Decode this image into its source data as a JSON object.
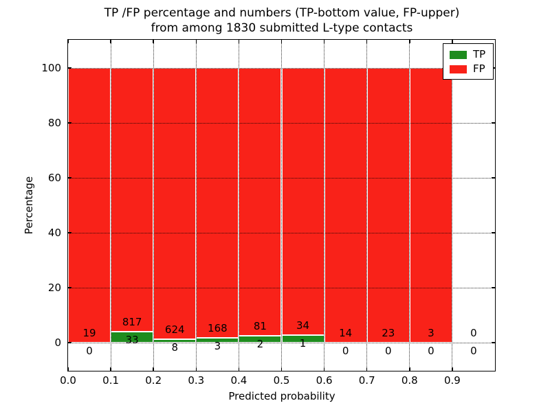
{
  "title": {
    "line1": "TP /FP percentage and numbers (TP-bottom value, FP-upper)",
    "line2": "from among 1830 submitted L-type contacts"
  },
  "axes": {
    "xlabel": "Predicted probability",
    "ylabel": "Percentage"
  },
  "legend": {
    "items": [
      {
        "label": "TP",
        "color": "#1e8c1e"
      },
      {
        "label": "FP",
        "color": "#f92219"
      }
    ]
  },
  "chart_data": {
    "type": "bar",
    "stacked": true,
    "title": "TP /FP percentage and numbers (TP-bottom value, FP-upper) from among 1830 submitted L-type contacts",
    "xlabel": "Predicted probability",
    "ylabel": "Percentage",
    "xlim": [
      0.0,
      1.0
    ],
    "ylim": [
      -10,
      110
    ],
    "grid": "dotted",
    "legend_position": "upper right",
    "x_ticks": [
      {
        "value": 0.0,
        "label": "0.0"
      },
      {
        "value": 0.1,
        "label": "0.1"
      },
      {
        "value": 0.2,
        "label": "0.2"
      },
      {
        "value": 0.3,
        "label": "0.3"
      },
      {
        "value": 0.4,
        "label": "0.4"
      },
      {
        "value": 0.5,
        "label": "0.5"
      },
      {
        "value": 0.6,
        "label": "0.6"
      },
      {
        "value": 0.7,
        "label": "0.7"
      },
      {
        "value": 0.8,
        "label": "0.8"
      },
      {
        "value": 0.9,
        "label": "0.9"
      }
    ],
    "y_ticks": [
      {
        "value": 0,
        "label": "0"
      },
      {
        "value": 20,
        "label": "20"
      },
      {
        "value": 40,
        "label": "40"
      },
      {
        "value": 60,
        "label": "60"
      },
      {
        "value": 80,
        "label": "80"
      },
      {
        "value": 100,
        "label": "100"
      }
    ],
    "series": [
      {
        "name": "TP",
        "color": "#1e8c1e",
        "position": "bottom"
      },
      {
        "name": "FP",
        "color": "#f92219",
        "position": "upper"
      }
    ],
    "bins": [
      {
        "x0": 0.0,
        "x1": 0.1,
        "tp": 0,
        "fp": 19
      },
      {
        "x0": 0.1,
        "x1": 0.2,
        "tp": 33,
        "fp": 817
      },
      {
        "x0": 0.2,
        "x1": 0.3,
        "tp": 8,
        "fp": 624
      },
      {
        "x0": 0.3,
        "x1": 0.4,
        "tp": 3,
        "fp": 168
      },
      {
        "x0": 0.4,
        "x1": 0.5,
        "tp": 2,
        "fp": 81
      },
      {
        "x0": 0.5,
        "x1": 0.6,
        "tp": 1,
        "fp": 34
      },
      {
        "x0": 0.6,
        "x1": 0.7,
        "tp": 0,
        "fp": 14
      },
      {
        "x0": 0.7,
        "x1": 0.8,
        "tp": 0,
        "fp": 23
      },
      {
        "x0": 0.8,
        "x1": 0.9,
        "tp": 0,
        "fp": 3
      },
      {
        "x0": 0.9,
        "x1": 1.0,
        "tp": 0,
        "fp": 0
      }
    ]
  }
}
